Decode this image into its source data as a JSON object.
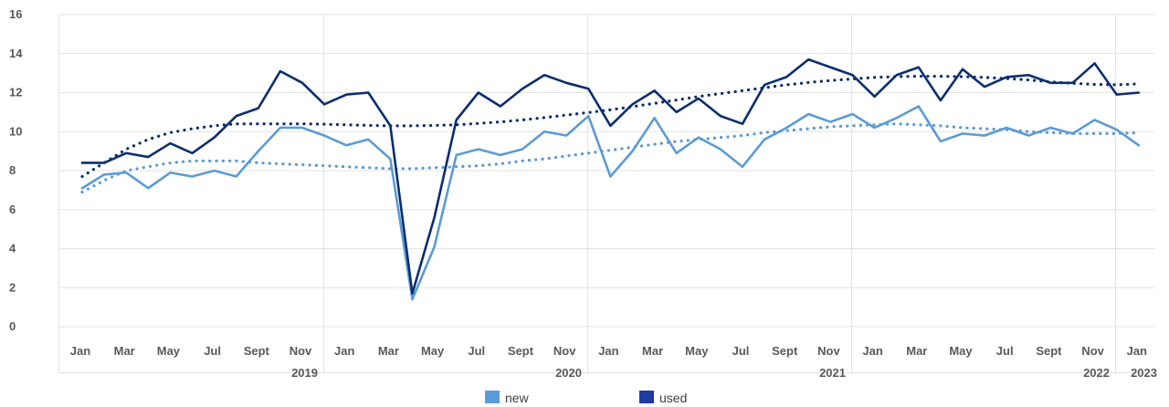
{
  "chart_data": {
    "type": "line",
    "ylim": [
      0,
      16
    ],
    "y_ticks": [
      "0",
      "2",
      "4",
      "6",
      "8",
      "10",
      "12",
      "14",
      "16"
    ],
    "month_ticks": [
      "Jan",
      "Mar",
      "May",
      "Jul",
      "Sept",
      "Nov",
      "Jan",
      "Mar",
      "May",
      "Jul",
      "Sept",
      "Nov",
      "Jan",
      "Mar",
      "May",
      "Jul",
      "Sept",
      "Nov",
      "Jan",
      "Mar",
      "May",
      "Jul",
      "Sept",
      "Nov",
      "Jan"
    ],
    "year_labels": [
      "2019",
      "2020",
      "2021",
      "2022",
      "2023"
    ],
    "grid": true,
    "legend_position": "bottom",
    "series": [
      {
        "name": "new",
        "color": "#5b9bd5",
        "values": [
          7.1,
          7.8,
          7.9,
          7.1,
          7.9,
          7.7,
          8.0,
          7.7,
          9.0,
          10.2,
          10.2,
          9.8,
          9.3,
          9.6,
          8.6,
          1.4,
          4.1,
          8.8,
          9.1,
          8.8,
          9.1,
          10.0,
          9.8,
          10.8,
          7.7,
          9.0,
          10.7,
          8.9,
          9.7,
          9.1,
          8.2,
          9.6,
          10.2,
          10.9,
          10.5,
          10.9,
          10.2,
          10.7,
          11.3,
          9.5,
          9.9,
          9.8,
          10.2,
          9.8,
          10.2,
          9.9,
          10.6,
          10.1,
          9.3
        ],
        "trend": [
          6.9,
          7.5,
          8.0,
          8.2,
          8.4,
          8.5,
          8.5,
          8.5,
          8.4,
          8.35,
          8.3,
          8.25,
          8.2,
          8.15,
          8.1,
          8.1,
          8.15,
          8.2,
          8.25,
          8.35,
          8.5,
          8.6,
          8.75,
          8.9,
          9.05,
          9.2,
          9.35,
          9.5,
          9.6,
          9.7,
          9.8,
          9.95,
          10.05,
          10.15,
          10.25,
          10.3,
          10.35,
          10.4,
          10.35,
          10.3,
          10.2,
          10.15,
          10.1,
          10.0,
          9.95,
          9.9,
          9.9,
          9.9,
          9.95
        ]
      },
      {
        "name": "used",
        "color": "#0b2e6f",
        "values": [
          8.4,
          8.4,
          8.9,
          8.7,
          9.4,
          8.9,
          9.7,
          10.8,
          11.2,
          13.1,
          12.5,
          11.4,
          11.9,
          12.0,
          10.3,
          1.7,
          5.6,
          10.6,
          12.0,
          11.3,
          12.2,
          12.9,
          12.5,
          12.2,
          10.3,
          11.4,
          12.1,
          11.0,
          11.7,
          10.8,
          10.4,
          12.4,
          12.8,
          13.7,
          13.3,
          12.9,
          11.8,
          12.9,
          13.3,
          11.6,
          13.2,
          12.3,
          12.8,
          12.9,
          12.5,
          12.5,
          13.5,
          11.9,
          12.0
        ],
        "trend": [
          7.7,
          8.4,
          9.1,
          9.6,
          9.95,
          10.15,
          10.3,
          10.4,
          10.4,
          10.4,
          10.4,
          10.38,
          10.35,
          10.32,
          10.3,
          10.3,
          10.32,
          10.35,
          10.42,
          10.5,
          10.6,
          10.72,
          10.85,
          10.98,
          11.12,
          11.28,
          11.45,
          11.62,
          11.8,
          11.95,
          12.1,
          12.25,
          12.4,
          12.52,
          12.62,
          12.7,
          12.78,
          12.82,
          12.84,
          12.84,
          12.82,
          12.78,
          12.72,
          12.65,
          12.55,
          12.48,
          12.42,
          12.4,
          12.45
        ]
      }
    ]
  }
}
